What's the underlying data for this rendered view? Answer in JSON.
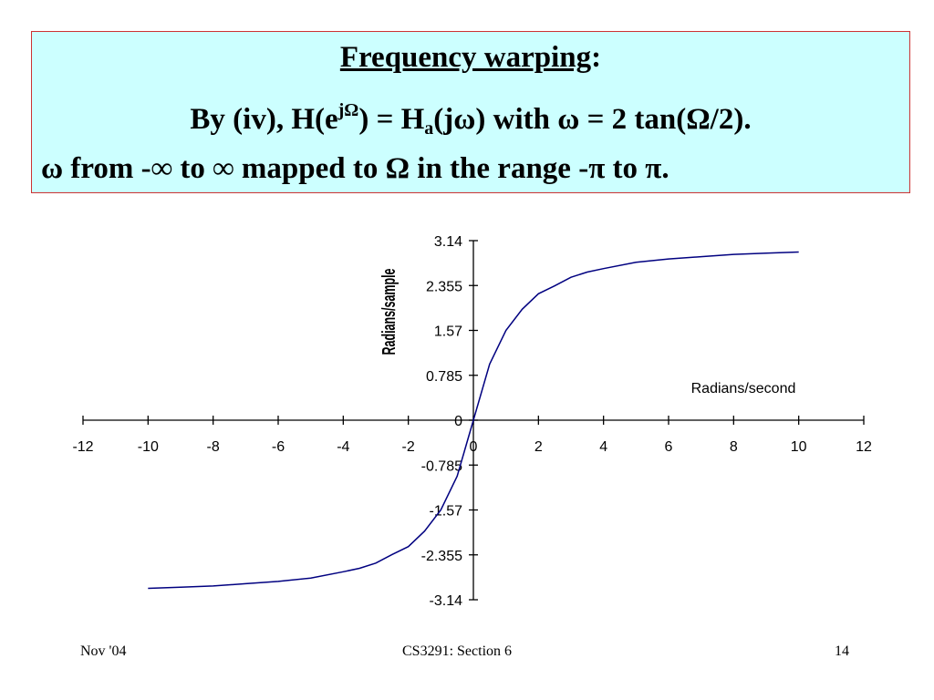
{
  "slide": {
    "title": "Frequency warping",
    "title_colon": ":",
    "eq": {
      "p1": "By (iv),  H(e",
      "sup": "jΩ",
      "p2": ") = H",
      "sub": "a",
      "p3": "(jω) with ω = 2 tan(Ω/2)."
    },
    "range_text": "ω from -∞ to ∞ mapped to Ω in the range -π to π."
  },
  "footer": {
    "left": "Nov '04",
    "center": "CS3291: Section 6",
    "right": "14"
  },
  "chart_data": {
    "type": "line",
    "xlabel": "Radians/second",
    "ylabel": "Radians/sample",
    "xlim": [
      -12,
      12
    ],
    "ylim": [
      -3.14,
      3.14
    ],
    "x_ticks": [
      -12,
      -10,
      -8,
      -6,
      -4,
      -2,
      0,
      2,
      4,
      6,
      8,
      10,
      12
    ],
    "x_tick_labels": [
      "-12",
      "-10",
      "-8",
      "-6",
      "-4",
      "-2",
      "0",
      "2",
      "4",
      "6",
      "8",
      "10",
      "12"
    ],
    "y_ticks": [
      3.14,
      2.355,
      1.57,
      0.785,
      0,
      -0.785,
      -1.57,
      -2.355,
      -3.14
    ],
    "y_tick_labels": [
      "3.14",
      "2.355",
      "1.57",
      "0.785",
      "0",
      "-0.785",
      "-1.57",
      "-2.355",
      "-3.14"
    ],
    "color": "#000080",
    "series": [
      {
        "x": [
          -10,
          -9,
          -8,
          -7,
          -6,
          -5,
          -4,
          -3.5,
          -3,
          -2.5,
          -2,
          -1.5,
          -1,
          -0.5,
          0,
          0.5,
          1,
          1.5,
          2,
          2.5,
          3,
          3.5,
          4,
          5,
          6,
          7,
          8,
          9,
          10
        ],
        "values": [
          -2.94,
          -2.92,
          -2.9,
          -2.86,
          -2.82,
          -2.76,
          -2.65,
          -2.59,
          -2.5,
          -2.35,
          -2.21,
          -1.94,
          -1.57,
          -0.98,
          0,
          0.98,
          1.57,
          1.94,
          2.21,
          2.35,
          2.5,
          2.59,
          2.65,
          2.76,
          2.82,
          2.86,
          2.9,
          2.92,
          2.94
        ]
      }
    ]
  }
}
